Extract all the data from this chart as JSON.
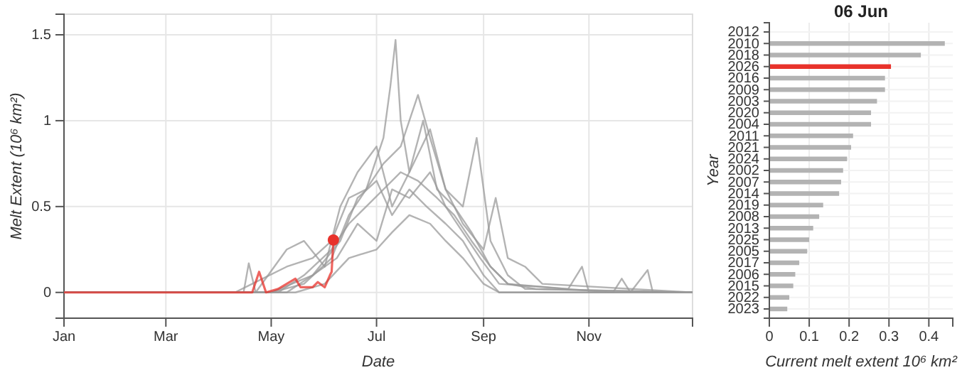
{
  "chart_data": [
    {
      "type": "line",
      "xlabel": "Date",
      "ylabel": "Melt Extent (10⁶ km²)",
      "xlim": [
        "--01-01",
        "--12-31"
      ],
      "ylim": [
        -0.15,
        1.62
      ],
      "xticks": [
        {
          "value": "--01-01",
          "label": "Jan"
        },
        {
          "value": "--03-01",
          "label": "Mar"
        },
        {
          "value": "--05-01",
          "label": "May"
        },
        {
          "value": "--07-01",
          "label": "Jul"
        },
        {
          "value": "--09-01",
          "label": "Sep"
        },
        {
          "value": "--11-01",
          "label": "Nov"
        }
      ],
      "yticks": [
        0,
        0.5,
        1,
        1.5
      ],
      "grid": true,
      "series": [
        {
          "color": "#9a9a9a",
          "x": [
            "--01-01",
            "--04-10",
            "--04-20",
            "--05-10",
            "--05-25",
            "--06-05",
            "--06-15",
            "--06-25",
            "--07-05",
            "--07-09",
            "--07-12",
            "--07-15",
            "--07-20",
            "--07-28",
            "--08-05",
            "--08-15",
            "--08-25",
            "--09-05",
            "--09-15",
            "--10-01",
            "--12-31"
          ],
          "values": [
            0,
            0,
            0.05,
            0.15,
            0.2,
            0.3,
            0.55,
            0.6,
            0.9,
            1.2,
            1.47,
            1.0,
            0.7,
            1.0,
            0.6,
            0.5,
            0.35,
            0.15,
            0.05,
            0.02,
            0
          ]
        },
        {
          "color": "#9a9a9a",
          "x": [
            "--01-01",
            "--05-01",
            "--05-20",
            "--06-05",
            "--06-15",
            "--06-25",
            "--07-05",
            "--07-15",
            "--07-25",
            "--08-01",
            "--08-10",
            "--08-20",
            "--08-28",
            "--09-05",
            "--09-15",
            "--09-25",
            "--12-31"
          ],
          "values": [
            0,
            0,
            0.05,
            0.2,
            0.45,
            0.6,
            0.75,
            0.85,
            1.15,
            0.9,
            0.6,
            0.5,
            0.9,
            0.3,
            0.1,
            0.02,
            0
          ]
        },
        {
          "color": "#9a9a9a",
          "x": [
            "--01-01",
            "--04-15",
            "--04-18",
            "--04-22",
            "--05-10",
            "--05-20",
            "--06-01",
            "--06-10",
            "--06-20",
            "--07-01",
            "--07-10",
            "--07-20",
            "--08-01",
            "--08-10",
            "--08-20",
            "--09-01",
            "--09-08",
            "--09-15",
            "--09-25",
            "--10-05",
            "--12-31"
          ],
          "values": [
            0,
            0,
            0.17,
            0,
            0.25,
            0.3,
            0.15,
            0.5,
            0.7,
            0.85,
            0.5,
            0.7,
            0.95,
            0.6,
            0.4,
            0.25,
            0.55,
            0.2,
            0.15,
            0.05,
            0
          ]
        },
        {
          "color": "#9a9a9a",
          "x": [
            "--01-01",
            "--05-15",
            "--06-01",
            "--06-15",
            "--07-01",
            "--07-10",
            "--07-20",
            "--08-01",
            "--08-10",
            "--08-20",
            "--09-01",
            "--09-10",
            "--12-31"
          ],
          "values": [
            0,
            0,
            0.05,
            0.2,
            0.25,
            0.35,
            0.45,
            0.4,
            0.3,
            0.2,
            0.05,
            0,
            0
          ]
        },
        {
          "color": "#9a9a9a",
          "x": [
            "--01-01",
            "--05-05",
            "--05-20",
            "--06-05",
            "--06-15",
            "--06-25",
            "--07-05",
            "--07-15",
            "--07-25",
            "--08-05",
            "--08-15",
            "--08-25",
            "--09-05",
            "--09-15",
            "--10-20",
            "--10-28",
            "--11-01",
            "--12-31"
          ],
          "values": [
            0,
            0,
            0.1,
            0.25,
            0.4,
            0.5,
            0.6,
            0.7,
            0.65,
            0.55,
            0.45,
            0.3,
            0.15,
            0.05,
            0.02,
            0.15,
            0,
            0
          ]
        },
        {
          "color": "#9a9a9a",
          "x": [
            "--01-01",
            "--05-10",
            "--05-25",
            "--06-08",
            "--06-20",
            "--07-01",
            "--07-10",
            "--07-20",
            "--08-01",
            "--08-10",
            "--08-20",
            "--08-30",
            "--09-10",
            "--11-15",
            "--11-20",
            "--11-25",
            "--12-05",
            "--12-08",
            "--12-31"
          ],
          "values": [
            0,
            0,
            0.1,
            0.2,
            0.4,
            0.3,
            0.6,
            0.55,
            0.7,
            0.5,
            0.35,
            0.2,
            0.05,
            0,
            0.08,
            0,
            0.13,
            0,
            0
          ]
        },
        {
          "color": "#9a9a9a",
          "x": [
            "--01-01",
            "--05-01",
            "--05-25",
            "--06-10",
            "--06-20",
            "--07-01",
            "--07-10",
            "--07-20",
            "--07-30",
            "--08-10",
            "--08-20",
            "--09-01",
            "--09-10",
            "--12-31"
          ],
          "values": [
            0,
            0,
            0.1,
            0.3,
            0.55,
            0.65,
            0.45,
            0.6,
            0.5,
            0.4,
            0.3,
            0.1,
            0,
            0
          ]
        },
        {
          "color": "#e8322b",
          "x": [
            "--01-01",
            "--04-20",
            "--04-24",
            "--04-28",
            "--05-05",
            "--05-10",
            "--05-15",
            "--05-18",
            "--05-25",
            "--05-28",
            "--06-01",
            "--06-04",
            "--06-05",
            "--06-06"
          ],
          "values": [
            0,
            0,
            0.12,
            0,
            0.02,
            0.05,
            0.08,
            0.03,
            0.03,
            0.06,
            0.03,
            0.1,
            0.12,
            0.305
          ]
        },
        {
          "type": "scatter",
          "marker": "circle",
          "color": "#e8322b",
          "x": [
            "--06-06"
          ],
          "values": [
            0.305
          ]
        }
      ]
    },
    {
      "type": "bar",
      "orientation": "horizontal",
      "title": "06 Jun",
      "xlabel": "Current melt extent 10⁶ km²",
      "ylabel": "Year",
      "xlim": [
        0,
        0.46
      ],
      "xticks": [
        0,
        0.1,
        0.2,
        0.3,
        0.4
      ],
      "grid": true,
      "categories": [
        "2012",
        "2010",
        "2018",
        "2026",
        "2016",
        "2009",
        "2003",
        "2020",
        "2004",
        "2011",
        "2021",
        "2024",
        "2002",
        "2007",
        "2014",
        "2019",
        "2008",
        "2013",
        "2025",
        "2005",
        "2017",
        "2006",
        "2015",
        "2022",
        "2023"
      ],
      "values": [
        0,
        0.44,
        0.38,
        0.305,
        0.29,
        0.29,
        0.27,
        0.255,
        0.255,
        0.21,
        0.205,
        0.195,
        0.185,
        0.18,
        0.175,
        0.135,
        0.125,
        0.11,
        0.1,
        0.095,
        0.075,
        0.065,
        0.06,
        0.05,
        0.045
      ],
      "colors": [
        "#b3b3b3",
        "#b3b3b3",
        "#b3b3b3",
        "#e8322b",
        "#b3b3b3",
        "#b3b3b3",
        "#b3b3b3",
        "#b3b3b3",
        "#b3b3b3",
        "#b3b3b3",
        "#b3b3b3",
        "#b3b3b3",
        "#b3b3b3",
        "#b3b3b3",
        "#b3b3b3",
        "#b3b3b3",
        "#b3b3b3",
        "#b3b3b3",
        "#b3b3b3",
        "#b3b3b3",
        "#b3b3b3",
        "#b3b3b3",
        "#b3b3b3",
        "#b3b3b3",
        "#b3b3b3"
      ]
    }
  ]
}
